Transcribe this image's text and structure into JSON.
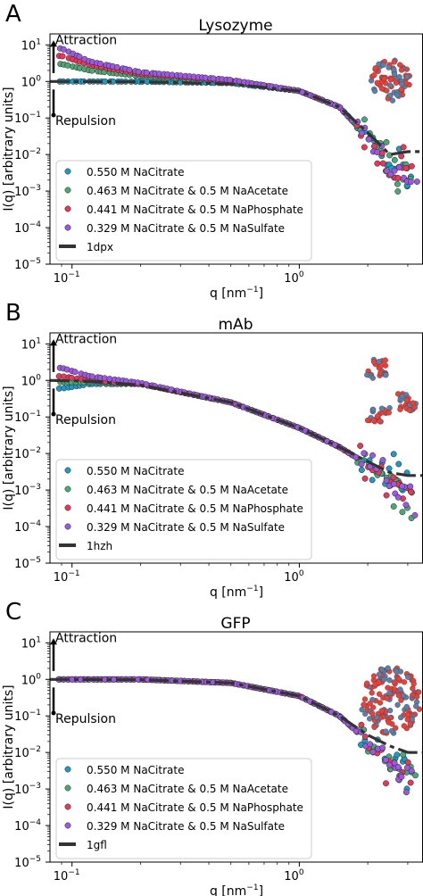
{
  "colors": {
    "series": [
      "#1f9bc2",
      "#4aa874",
      "#e8385a",
      "#9b59e0"
    ],
    "fit": "#333333",
    "protein_a": "#e8413c",
    "protein_b": "#5b7fa8"
  },
  "shared": {
    "xlabel": "q [nm$^{-1}$]",
    "xlabel_text": "q [nm",
    "xlabel_sup": "−1",
    "xlabel_close": "]",
    "ylabel": "I(q) [arbitrary units]",
    "attraction": "Attraction",
    "repulsion": "Repulsion",
    "xticks": [
      {
        "v": 0.1,
        "base": "10",
        "exp": "−1"
      },
      {
        "v": 1,
        "base": "10",
        "exp": "0"
      }
    ],
    "yticks": [
      {
        "v": 10,
        "base": "10",
        "exp": "1"
      },
      {
        "v": 1,
        "base": "10",
        "exp": "0"
      },
      {
        "v": 0.1,
        "base": "10",
        "exp": "−1"
      },
      {
        "v": 0.01,
        "base": "10",
        "exp": "−2"
      },
      {
        "v": 0.001,
        "base": "10",
        "exp": "−3"
      },
      {
        "v": 0.0001,
        "base": "10",
        "exp": "−4"
      },
      {
        "v": 1e-05,
        "base": "10",
        "exp": "−5"
      }
    ]
  },
  "chart_data": [
    {
      "type": "scatter",
      "panel_letter": "A",
      "title": "Lysozyme",
      "xlabel": "q [nm$^{-1}$]",
      "ylabel": "I(q) [arbitrary units]",
      "xscale": "log",
      "yscale": "log",
      "xlim": [
        0.08,
        3.5
      ],
      "ylim": [
        1e-05,
        20
      ],
      "legend": "lower-left",
      "series": [
        {
          "name": "0.550 M NaCitrate",
          "x": [
            0.09,
            0.12,
            0.2,
            0.5,
            1.0,
            1.5,
            2.0,
            2.5,
            3.0
          ],
          "y": [
            1.0,
            1.0,
            0.99,
            0.9,
            0.55,
            0.2,
            0.03,
            0.005,
            0.003
          ]
        },
        {
          "name": "0.463 M NaCitrate & 0.5 M NaAcetate",
          "x": [
            0.09,
            0.12,
            0.2,
            0.5,
            1.0,
            1.5,
            2.0,
            2.5,
            3.0
          ],
          "y": [
            3.0,
            2.0,
            1.4,
            1.0,
            0.55,
            0.2,
            0.03,
            0.005,
            0.003
          ]
        },
        {
          "name": "0.441 M NaCitrate & 0.5 M NaPhosphate",
          "x": [
            0.09,
            0.12,
            0.2,
            0.5,
            1.0,
            1.5,
            2.0,
            2.5,
            3.0
          ],
          "y": [
            5.0,
            2.8,
            1.6,
            1.05,
            0.55,
            0.2,
            0.03,
            0.005,
            0.003
          ]
        },
        {
          "name": "0.329 M NaCitrate & 0.5 M NaSulfate",
          "x": [
            0.09,
            0.12,
            0.2,
            0.5,
            1.0,
            1.5,
            2.0,
            2.5,
            3.0
          ],
          "y": [
            8.0,
            3.5,
            1.8,
            1.1,
            0.55,
            0.2,
            0.03,
            0.005,
            0.003
          ]
        }
      ],
      "fit": {
        "name": "1dpx",
        "x": [
          0.08,
          0.2,
          0.5,
          1.0,
          1.5,
          2.0,
          2.5,
          3.0,
          3.5
        ],
        "y": [
          1.0,
          0.98,
          0.85,
          0.55,
          0.2,
          0.04,
          0.01,
          0.012,
          0.012
        ]
      }
    },
    {
      "type": "scatter",
      "panel_letter": "B",
      "title": "mAb",
      "xlabel": "q [nm$^{-1}$]",
      "ylabel": "I(q) [arbitrary units]",
      "xscale": "log",
      "yscale": "log",
      "xlim": [
        0.08,
        3.5
      ],
      "ylim": [
        1e-05,
        20
      ],
      "legend": "lower-left",
      "series": [
        {
          "name": "0.550 M NaCitrate",
          "x": [
            0.09,
            0.12,
            0.2,
            0.5,
            1.0,
            1.5,
            2.0,
            2.5,
            3.0
          ],
          "y": [
            0.6,
            0.8,
            0.8,
            0.25,
            0.05,
            0.015,
            0.005,
            0.002,
            0.001
          ]
        },
        {
          "name": "0.463 M NaCitrate & 0.5 M NaAcetate",
          "x": [
            0.09,
            0.12,
            0.2,
            0.5,
            1.0,
            1.5,
            2.0,
            2.5,
            3.0
          ],
          "y": [
            0.9,
            0.9,
            0.8,
            0.25,
            0.05,
            0.015,
            0.005,
            0.002,
            0.0006
          ]
        },
        {
          "name": "0.441 M NaCitrate & 0.5 M NaPhosphate",
          "x": [
            0.09,
            0.12,
            0.2,
            0.5,
            1.0,
            1.5,
            2.0,
            2.5,
            3.0
          ],
          "y": [
            1.3,
            1.0,
            0.8,
            0.25,
            0.05,
            0.015,
            0.005,
            0.002,
            0.0006
          ]
        },
        {
          "name": "0.329 M NaCitrate & 0.5 M NaSulfate",
          "x": [
            0.09,
            0.12,
            0.2,
            0.5,
            1.0,
            1.5,
            2.0,
            2.5,
            3.0
          ],
          "y": [
            2.2,
            1.3,
            0.85,
            0.25,
            0.05,
            0.015,
            0.005,
            0.002,
            0.0006
          ]
        }
      ],
      "fit": {
        "name": "1hzh",
        "x": [
          0.08,
          0.12,
          0.2,
          0.5,
          1.0,
          1.5,
          2.0,
          2.5,
          3.0,
          3.5
        ],
        "y": [
          1.0,
          0.95,
          0.75,
          0.25,
          0.05,
          0.015,
          0.006,
          0.003,
          0.0025,
          0.0025
        ]
      }
    },
    {
      "type": "scatter",
      "panel_letter": "C",
      "title": "GFP",
      "xlabel": "q [nm$^{-1}$]",
      "ylabel": "I(q) [arbitrary units]",
      "xscale": "log",
      "yscale": "log",
      "xlim": [
        0.08,
        3.5
      ],
      "ylim": [
        1e-05,
        20
      ],
      "legend": "lower-left",
      "series": [
        {
          "name": "0.550 M NaCitrate",
          "x": [
            0.09,
            0.12,
            0.2,
            0.5,
            1.0,
            1.5,
            2.0,
            2.5,
            3.0
          ],
          "y": [
            1.0,
            1.0,
            1.0,
            0.8,
            0.35,
            0.1,
            0.02,
            0.005,
            0.002
          ]
        },
        {
          "name": "0.463 M NaCitrate & 0.5 M NaAcetate",
          "x": [
            0.09,
            0.12,
            0.2,
            0.5,
            1.0,
            1.5,
            2.0,
            2.5,
            3.0
          ],
          "y": [
            1.0,
            1.0,
            1.0,
            0.8,
            0.35,
            0.1,
            0.02,
            0.005,
            0.002
          ]
        },
        {
          "name": "0.441 M NaCitrate & 0.5 M NaPhosphate",
          "x": [
            0.09,
            0.12,
            0.2,
            0.5,
            1.0,
            1.5,
            2.0,
            2.5,
            3.0
          ],
          "y": [
            1.0,
            1.0,
            1.0,
            0.8,
            0.35,
            0.1,
            0.02,
            0.005,
            0.002
          ]
        },
        {
          "name": "0.329 M NaCitrate & 0.5 M NaSulfate",
          "x": [
            0.09,
            0.12,
            0.2,
            0.5,
            1.0,
            1.5,
            2.0,
            2.5,
            3.0
          ],
          "y": [
            1.0,
            1.0,
            1.0,
            0.8,
            0.35,
            0.1,
            0.02,
            0.005,
            0.002
          ]
        }
      ],
      "fit": {
        "name": "1gfl",
        "x": [
          0.08,
          0.2,
          0.5,
          1.0,
          1.5,
          2.0,
          2.5,
          3.0,
          3.5
        ],
        "y": [
          1.0,
          0.98,
          0.8,
          0.35,
          0.1,
          0.03,
          0.015,
          0.01,
          0.01
        ]
      }
    }
  ]
}
